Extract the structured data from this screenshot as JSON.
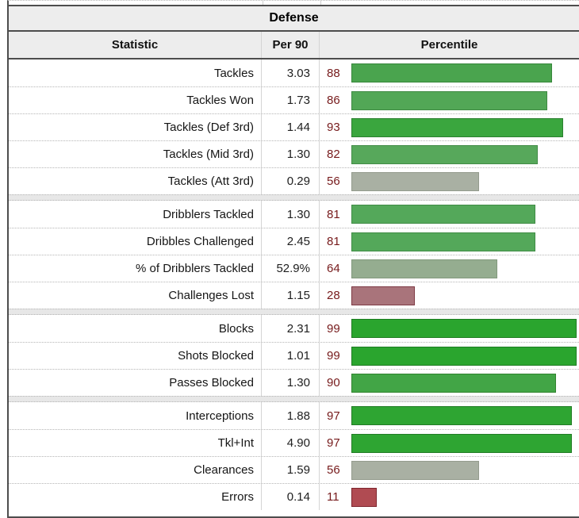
{
  "table": {
    "title": "Defense",
    "columns": {
      "statistic": "Statistic",
      "per90": "Per 90",
      "percentile": "Percentile"
    },
    "percentile_number_color": "#761a1b",
    "bar_track_max_percent": 100,
    "groups": [
      {
        "rows": [
          {
            "stat": "Tackles",
            "per90": "3.03",
            "percentile": 88,
            "bar_fill": "#4aa44e",
            "bar_border": "#37873b"
          },
          {
            "stat": "Tackles Won",
            "per90": "1.73",
            "percentile": 86,
            "bar_fill": "#52a756",
            "bar_border": "#3e8a42"
          },
          {
            "stat": "Tackles (Def 3rd)",
            "per90": "1.44",
            "percentile": 93,
            "bar_fill": "#3aa63e",
            "bar_border": "#2b8030"
          },
          {
            "stat": "Tackles (Mid 3rd)",
            "per90": "1.30",
            "percentile": 82,
            "bar_fill": "#57a85b",
            "bar_border": "#428c47"
          },
          {
            "stat": "Tackles (Att 3rd)",
            "per90": "0.29",
            "percentile": 56,
            "bar_fill": "#a9b0a3",
            "bar_border": "#949b8d"
          }
        ]
      },
      {
        "rows": [
          {
            "stat": "Dribblers Tackled",
            "per90": "1.30",
            "percentile": 81,
            "bar_fill": "#54a85a",
            "bar_border": "#408c46"
          },
          {
            "stat": "Dribbles Challenged",
            "per90": "2.45",
            "percentile": 81,
            "bar_fill": "#54a85a",
            "bar_border": "#408c46"
          },
          {
            "stat": "% of Dribblers Tackled",
            "per90": "52.9%",
            "percentile": 64,
            "bar_fill": "#95ad90",
            "bar_border": "#82997d"
          },
          {
            "stat": "Challenges Lost",
            "per90": "1.15",
            "percentile": 28,
            "bar_fill": "#a9747b",
            "bar_border": "#7e3a44"
          }
        ]
      },
      {
        "rows": [
          {
            "stat": "Blocks",
            "per90": "2.31",
            "percentile": 99,
            "bar_fill": "#2aa52e",
            "bar_border": "#1e7c22"
          },
          {
            "stat": "Shots Blocked",
            "per90": "1.01",
            "percentile": 99,
            "bar_fill": "#2aa52e",
            "bar_border": "#1e7c22"
          },
          {
            "stat": "Passes Blocked",
            "per90": "1.30",
            "percentile": 90,
            "bar_fill": "#42a546",
            "bar_border": "#31842f"
          }
        ]
      },
      {
        "rows": [
          {
            "stat": "Interceptions",
            "per90": "1.88",
            "percentile": 97,
            "bar_fill": "#2ea532",
            "bar_border": "#217c25"
          },
          {
            "stat": "Tkl+Int",
            "per90": "4.90",
            "percentile": 97,
            "bar_fill": "#2ea532",
            "bar_border": "#217c25"
          },
          {
            "stat": "Clearances",
            "per90": "1.59",
            "percentile": 56,
            "bar_fill": "#a9b0a3",
            "bar_border": "#949b8d"
          },
          {
            "stat": "Errors",
            "per90": "0.14",
            "percentile": 11,
            "bar_fill": "#b04b52",
            "bar_border": "#7e262e"
          }
        ]
      }
    ]
  }
}
